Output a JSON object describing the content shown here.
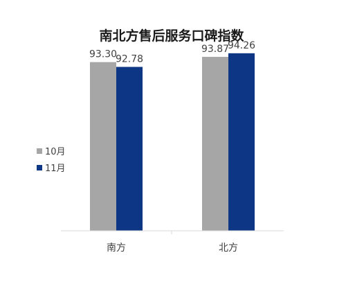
{
  "chart_data": {
    "type": "bar",
    "title": "南北方售后服务口碑指数",
    "categories": [
      "南方",
      "北方"
    ],
    "series": [
      {
        "name": "10月",
        "values": [
          93.3,
          93.87
        ],
        "labels": [
          "93.30",
          "93.87"
        ],
        "color": "#A6A6A6"
      },
      {
        "name": "11月",
        "values": [
          92.78,
          94.26
        ],
        "labels": [
          "92.78",
          "94.26"
        ],
        "color": "#0D3685"
      }
    ],
    "ylim": [
      75,
      95
    ],
    "grid": false,
    "legend": "left",
    "xlabel": "",
    "ylabel": ""
  }
}
